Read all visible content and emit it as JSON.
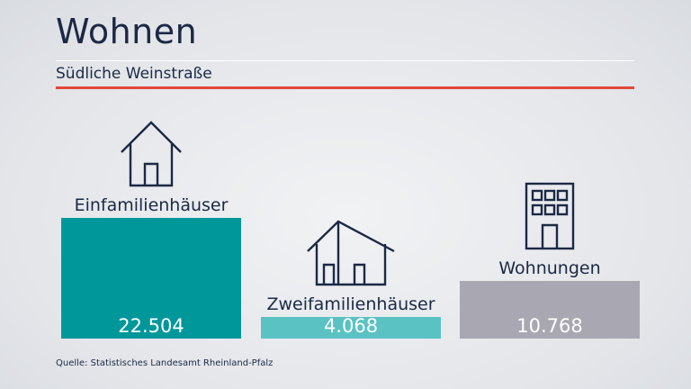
{
  "header": {
    "title": "Wohnen",
    "subtitle": "Südliche Weinstraße"
  },
  "source": "Quelle: Statistisches Landesamt Rheinland-Pfalz",
  "chart_data": {
    "type": "bar",
    "title": "Wohnen",
    "subtitle": "Südliche Weinstraße",
    "categories": [
      "Einfamilienhäuser",
      "Zweifamilienhäuser",
      "Wohnungen"
    ],
    "values": [
      22504,
      4068,
      10768
    ],
    "value_labels": [
      "22.504",
      "4.068",
      "10.768"
    ],
    "icons": [
      "house-icon",
      "double-house-icon",
      "apartment-building-icon"
    ],
    "colors": [
      "#00979b",
      "#5bc2c4",
      "#a9a7b2"
    ],
    "ylim": [
      0,
      22504
    ],
    "grid": false,
    "legend": "none"
  },
  "colors": {
    "title": "#1b2945",
    "accent_rule": "#e2473a",
    "background": "#e6e8ec"
  }
}
